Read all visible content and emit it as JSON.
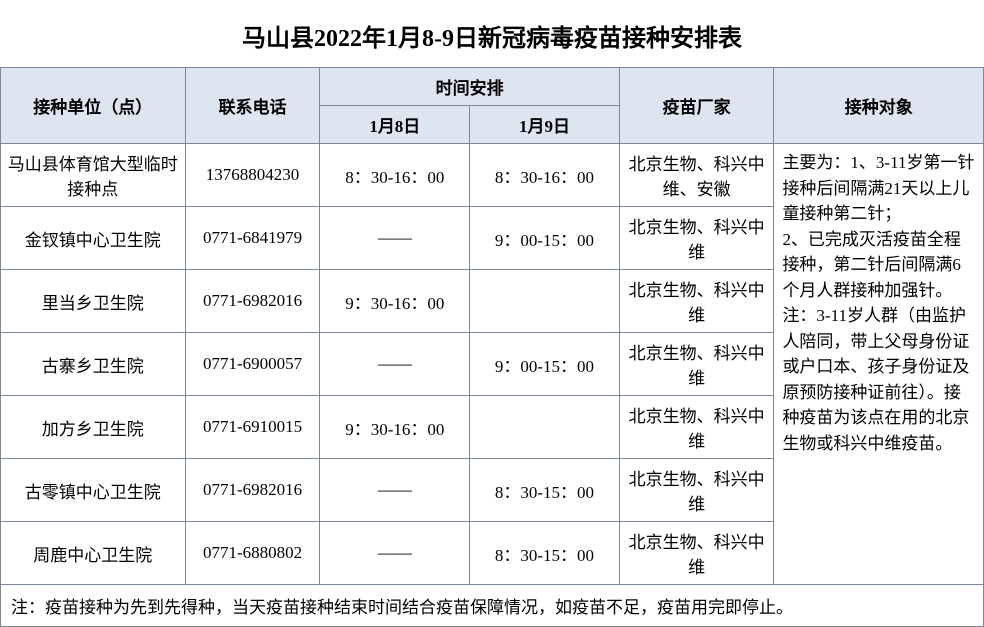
{
  "title": "马山县2022年1月8-9日新冠病毒疫苗接种安排表",
  "headers": {
    "unit": "接种单位（点）",
    "phone": "联系电话",
    "timegroup": "时间安排",
    "jan8": "1月8日",
    "jan9": "1月9日",
    "maker": "疫苗厂家",
    "target": "接种对象"
  },
  "rows": [
    {
      "unit": "马山县体育馆大型临时接种点",
      "phone": "13768804230",
      "jan8": "8：30-16：00",
      "jan9": "8：30-16：00",
      "maker": "北京生物、科兴中维、安徽"
    },
    {
      "unit": "金钗镇中心卫生院",
      "phone": "0771-6841979",
      "jan8": "——",
      "jan9": "9：00-15：00",
      "maker": "北京生物、科兴中维"
    },
    {
      "unit": "里当乡卫生院",
      "phone": "0771-6982016",
      "jan8": "9：30-16：00",
      "jan9": "",
      "maker": "北京生物、科兴中维"
    },
    {
      "unit": "古寨乡卫生院",
      "phone": "0771-6900057",
      "jan8": "——",
      "jan9": "9：00-15：00",
      "maker": "北京生物、科兴中维"
    },
    {
      "unit": "加方乡卫生院",
      "phone": "0771-6910015",
      "jan8": "9：30-16：00",
      "jan9": "",
      "maker": "北京生物、科兴中维"
    },
    {
      "unit": "古零镇中心卫生院",
      "phone": "0771-6982016",
      "jan8": "——",
      "jan9": "8：30-15：00",
      "maker": "北京生物、科兴中维"
    },
    {
      "unit": "周鹿中心卫生院",
      "phone": "0771-6880802",
      "jan8": "——",
      "jan9": "8：30-15：00",
      "maker": "北京生物、科兴中维"
    }
  ],
  "target_text": "主要为：1、3-11岁第一针接种后间隔满21天以上儿童接种第二针；\n2、已完成灭活疫苗全程接种，第二针后间隔满6个月人群接种加强针。\n注：3-11岁人群（由监护人陪同，带上父母身份证或户口本、孩子身份证及原预防接种证前往）。接种疫苗为该点在用的北京生物或科兴中维疫苗。",
  "footnote": "注：疫苗接种为先到先得种，当天疫苗接种结束时间结合疫苗保障情况，如疫苗不足，疫苗用完即停止。",
  "colors": {
    "header_bg": "#dde5f0",
    "border": "#7a889a",
    "bg": "#ffffff"
  }
}
